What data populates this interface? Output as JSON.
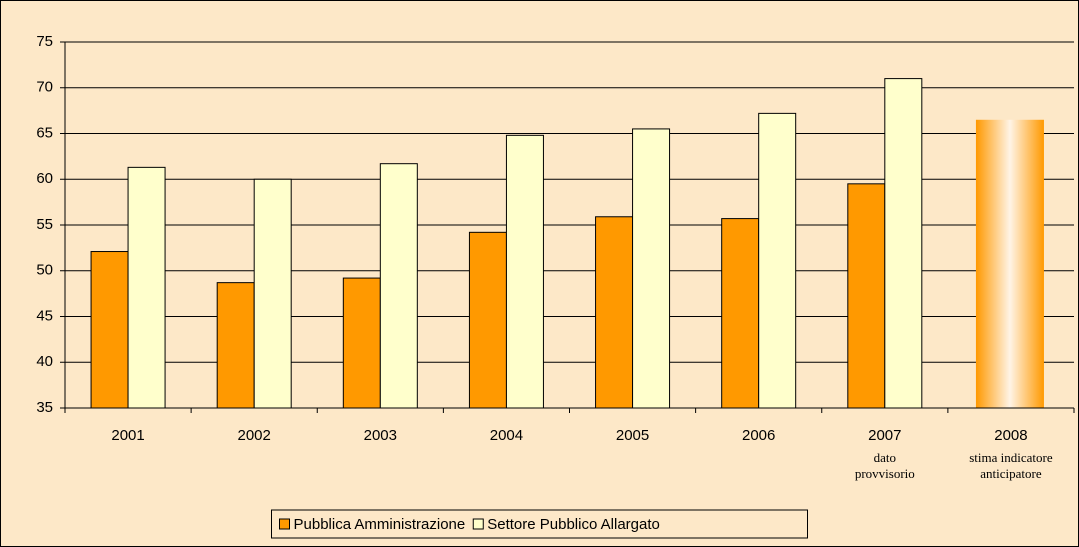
{
  "chart_data": {
    "type": "bar",
    "categories": [
      "2001",
      "2002",
      "2003",
      "2004",
      "2005",
      "2006",
      "2007",
      "2008"
    ],
    "category_notes": [
      null,
      null,
      null,
      null,
      null,
      null,
      "dato provvisorio",
      "stima indicatore anticipatore"
    ],
    "series": [
      {
        "name": "Pubblica Amministrazione",
        "color": "#ff9900",
        "values": [
          52.1,
          48.7,
          49.2,
          54.2,
          55.9,
          55.7,
          59.5,
          66.5
        ]
      },
      {
        "name": "Settore Pubblico Allargato",
        "color": "#ffffcc",
        "values": [
          61.3,
          60.0,
          61.7,
          64.8,
          65.5,
          67.2,
          71.0,
          null
        ]
      }
    ],
    "highlight_index": 7,
    "ylim": [
      35,
      75
    ],
    "yticks": [
      35,
      40,
      45,
      50,
      55,
      60,
      65,
      70,
      75
    ],
    "grid": true,
    "legend": "bottom"
  }
}
